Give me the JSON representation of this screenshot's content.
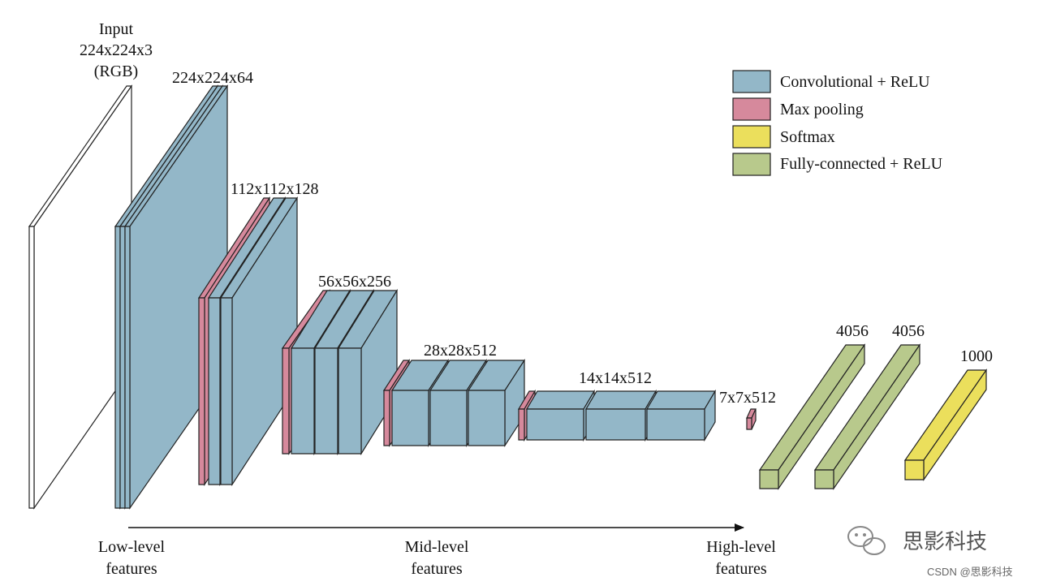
{
  "colors": {
    "conv": "#93b7c8",
    "pool": "#d6899c",
    "softmax": "#ebdf5c",
    "fc": "#b8c98c",
    "input": "#ffffff",
    "line": "#222222"
  },
  "input_label": {
    "line1": "Input",
    "line2": "224x224x3",
    "line3": "(RGB)"
  },
  "stage_labels": {
    "s1": "224x224x64",
    "s2": "112x112x128",
    "s3": "56x56x256",
    "s4": "28x28x512",
    "s5": "14x14x512",
    "s6": "7x7x512",
    "fc1": "4056",
    "fc2": "4056",
    "fc3": "1000"
  },
  "legend": [
    {
      "label": "Convolutional + ReLU",
      "color_key": "conv"
    },
    {
      "label": "Max pooling",
      "color_key": "pool"
    },
    {
      "label": "Softmax",
      "color_key": "softmax"
    },
    {
      "label": "Fully-connected + ReLU",
      "color_key": "fc"
    }
  ],
  "axis": {
    "low": {
      "line1": "Low-level",
      "line2": "features"
    },
    "mid": {
      "line1": "Mid-level",
      "line2": "features"
    },
    "high": {
      "line1": "High-level",
      "line2": "features"
    }
  },
  "watermark": {
    "brand": "思影科技",
    "footer": "CSDN @思影科技",
    "icon": "wechat-icon"
  }
}
